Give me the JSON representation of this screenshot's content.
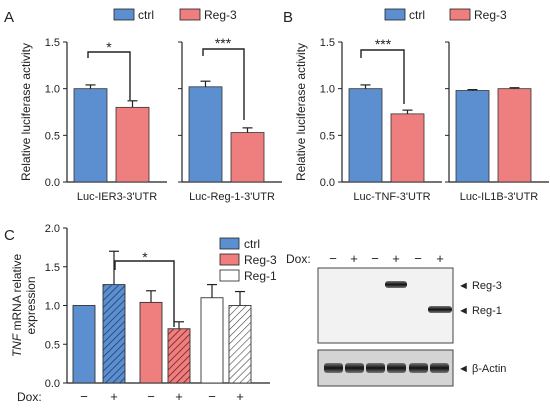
{
  "colors": {
    "ctrl": "#5b8fd0",
    "reg3": "#ef7e7e",
    "reg1": "#ffffff",
    "axis": "#222222"
  },
  "panel_labels": {
    "a": "A",
    "b": "B",
    "c": "C"
  },
  "legend_ab": {
    "ctrl": "ctrl",
    "reg3": "Reg-3"
  },
  "legend_c": {
    "ctrl": "ctrl",
    "reg3": "Reg-3",
    "reg1": "Reg-1"
  },
  "significance": {
    "a1": "*",
    "a2": "***",
    "b1": "***",
    "c1": "*"
  },
  "blot": {
    "dox_label": "Dox:",
    "lanes": [
      "−",
      "+",
      "−",
      "+",
      "−",
      "+"
    ],
    "band_reg3": "◄ Reg-3",
    "band_reg1": "◄ Reg-1",
    "band_actin": "◄ β-Actin"
  },
  "chart_data": [
    {
      "type": "bar",
      "panel": "A",
      "ylabel": "Relative luciferase activity",
      "ylim": [
        0,
        1.5
      ],
      "yticks": [
        "0.0",
        "0.5",
        "1.0",
        "1.5"
      ],
      "categories": [
        "Luc-IER3-3'UTR"
      ],
      "series": [
        {
          "name": "ctrl",
          "values": [
            1.0
          ],
          "errors": [
            0.04
          ]
        },
        {
          "name": "Reg-3",
          "values": [
            0.8
          ],
          "errors": [
            0.07
          ]
        }
      ]
    },
    {
      "type": "bar",
      "panel": "A",
      "ylim": [
        0,
        1.5
      ],
      "categories": [
        "Luc-Reg-1-3'UTR"
      ],
      "series": [
        {
          "name": "ctrl",
          "values": [
            1.02
          ],
          "errors": [
            0.06
          ]
        },
        {
          "name": "Reg-3",
          "values": [
            0.53
          ],
          "errors": [
            0.05
          ]
        }
      ]
    },
    {
      "type": "bar",
      "panel": "B",
      "ylabel": "Relative luciferase activity",
      "ylim": [
        0,
        1.5
      ],
      "yticks": [
        "0.0",
        "0.5",
        "1.0",
        "1.5"
      ],
      "categories": [
        "Luc-TNF-3'UTR"
      ],
      "series": [
        {
          "name": "ctrl",
          "values": [
            1.0
          ],
          "errors": [
            0.04
          ]
        },
        {
          "name": "Reg-3",
          "values": [
            0.73
          ],
          "errors": [
            0.04
          ]
        }
      ]
    },
    {
      "type": "bar",
      "panel": "B",
      "ylim": [
        0,
        1.5
      ],
      "categories": [
        "Luc-IL1B-3'UTR"
      ],
      "series": [
        {
          "name": "ctrl",
          "values": [
            0.98
          ],
          "errors": [
            0.01
          ]
        },
        {
          "name": "Reg-3",
          "values": [
            1.0
          ],
          "errors": [
            0.01
          ]
        }
      ]
    },
    {
      "type": "bar",
      "panel": "C",
      "ylabel_italic": "TNF",
      "ylabel_rest": " mRNA relative",
      "ylabel_line2": "expression",
      "xlabel": "Dox:",
      "ylim": [
        0,
        2.0
      ],
      "yticks": [
        "0.0",
        "0.5",
        "1.0",
        "1.5",
        "2.0"
      ],
      "dox": [
        "−",
        "+",
        "−",
        "+",
        "−",
        "+"
      ],
      "series": [
        {
          "name": "ctrl",
          "values": [
            1.0,
            1.27
          ],
          "errors": [
            0.0,
            0.43
          ]
        },
        {
          "name": "Reg-3",
          "values": [
            1.04,
            0.7
          ],
          "errors": [
            0.15,
            0.09
          ]
        },
        {
          "name": "Reg-1",
          "values": [
            1.1,
            1.0
          ],
          "errors": [
            0.17,
            0.18
          ]
        }
      ]
    }
  ]
}
